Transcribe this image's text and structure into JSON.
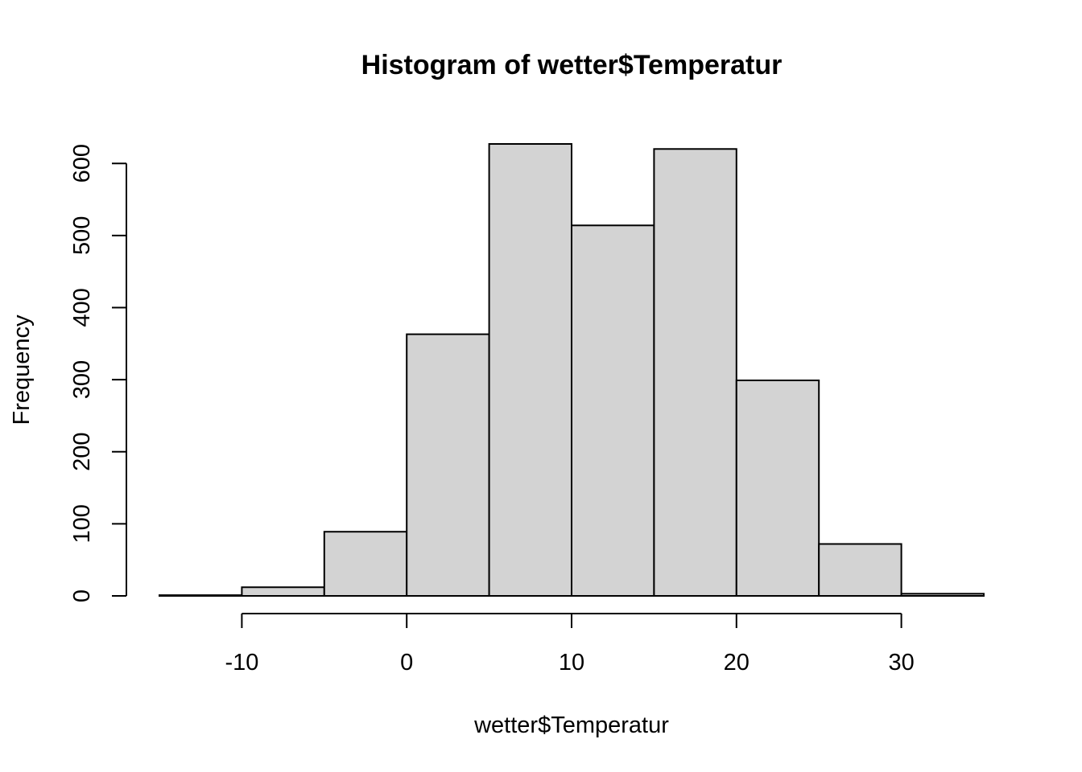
{
  "chart_data": {
    "type": "bar",
    "title": "Histogram of wetter$Temperatur",
    "xlabel": "wetter$Temperatur",
    "ylabel": "Frequency",
    "bins": [
      {
        "from": -15,
        "to": -10,
        "count": 1
      },
      {
        "from": -10,
        "to": -5,
        "count": 12
      },
      {
        "from": -5,
        "to": 0,
        "count": 89
      },
      {
        "from": 0,
        "to": 5,
        "count": 363
      },
      {
        "from": 5,
        "to": 10,
        "count": 627
      },
      {
        "from": 10,
        "to": 15,
        "count": 514
      },
      {
        "from": 15,
        "to": 20,
        "count": 620
      },
      {
        "from": 20,
        "to": 25,
        "count": 299
      },
      {
        "from": 25,
        "to": 30,
        "count": 72
      },
      {
        "from": 30,
        "to": 35,
        "count": 3
      }
    ],
    "xlim": [
      -15,
      35
    ],
    "ylim": [
      0,
      627
    ],
    "x_ticks": [
      -10,
      0,
      10,
      20,
      30
    ],
    "y_ticks": [
      0,
      100,
      200,
      300,
      400,
      500,
      600
    ],
    "bar_color": "#d3d3d3",
    "grid": false,
    "legend": "none"
  }
}
